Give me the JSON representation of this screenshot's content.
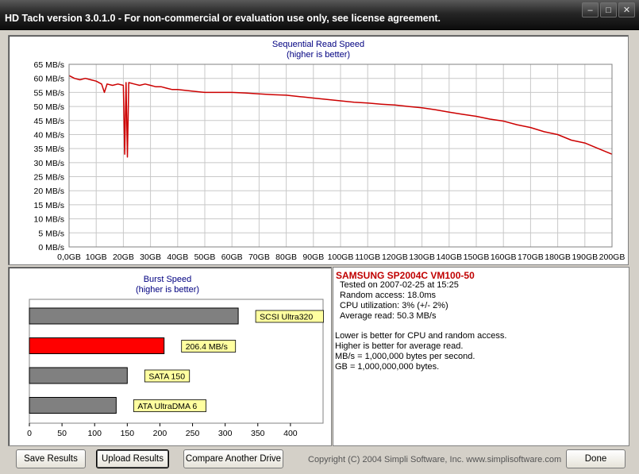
{
  "window": {
    "title": "HD Tach version 3.0.1.0  - For non-commercial or evaluation use only, see license agreement."
  },
  "seq_chart": {
    "title": "Sequential Read Speed",
    "subtitle": "(higher is better)"
  },
  "burst_chart": {
    "title": "Burst Speed",
    "subtitle": "(higher is better)"
  },
  "info": {
    "drive": "SAMSUNG SP2004C VM100-50",
    "tested": "Tested on 2007-02-25 at 15:25",
    "random_access": "Random access: 18.0ms",
    "cpu": "CPU utilization: 3% (+/- 2%)",
    "avg_read": "Average read: 50.3 MB/s",
    "note1": "Lower is better for CPU and random access.",
    "note2": "Higher is better for average read.",
    "note3": "MB/s = 1,000,000 bytes per second.",
    "note4": "GB = 1,000,000,000 bytes."
  },
  "buttons": {
    "save": "Save Results",
    "upload": "Upload Results",
    "compare": "Compare Another Drive",
    "done": "Done"
  },
  "copyright": "Copyright (C) 2004 Simpli Software, Inc. www.simplisoftware.com",
  "colors": {
    "accent_red": "#cc0000",
    "bar_gray": "#808080",
    "bar_red": "#ff0000",
    "label_yellow": "#ffffa0",
    "title_blue": "#000080"
  },
  "chart_data": [
    {
      "type": "line",
      "title": "Sequential Read Speed",
      "subtitle": "(higher is better)",
      "ylim": [
        0,
        65
      ],
      "xlim": [
        0,
        200
      ],
      "yticks": [
        "65 MB/s",
        "60 MB/s",
        "55 MB/s",
        "50 MB/s",
        "45 MB/s",
        "40 MB/s",
        "35 MB/s",
        "30 MB/s",
        "25 MB/s",
        "20 MB/s",
        "15 MB/s",
        "10 MB/s",
        "5 MB/s",
        "0 MB/s"
      ],
      "xticks": [
        "0,0GB",
        "10GB",
        "20GB",
        "30GB",
        "40GB",
        "50GB",
        "60GB",
        "70GB",
        "80GB",
        "90GB",
        "100GB",
        "110GB",
        "120GB",
        "130GB",
        "140GB",
        "150GB",
        "160GB",
        "170GB",
        "180GB",
        "190GB",
        "200GB"
      ],
      "series": [
        {
          "x": [
            0,
            2,
            4,
            6,
            8,
            10,
            12,
            13,
            14,
            16,
            18,
            20,
            20.5,
            21,
            21.5,
            22,
            24,
            26,
            28,
            30,
            32,
            34,
            36,
            38,
            40,
            45,
            50,
            55,
            60,
            65,
            70,
            75,
            80,
            85,
            90,
            95,
            100,
            105,
            110,
            115,
            120,
            125,
            130,
            135,
            140,
            145,
            150,
            155,
            160,
            165,
            170,
            175,
            180,
            185,
            190,
            195,
            200
          ],
          "y": [
            61,
            60,
            59.5,
            60,
            59.5,
            59,
            58,
            55,
            58,
            57.5,
            58,
            57.5,
            33,
            58.5,
            32,
            58.5,
            58,
            57.5,
            58,
            57.5,
            57,
            57,
            56.5,
            56,
            56,
            55.5,
            55,
            55,
            55,
            54.8,
            54.5,
            54.2,
            54,
            53.5,
            53,
            52.5,
            52,
            51.5,
            51.2,
            50.8,
            50.5,
            50,
            49.5,
            48.8,
            48,
            47.2,
            46.5,
            45.5,
            44.8,
            43.5,
            42.5,
            41,
            40,
            38,
            37,
            35,
            33
          ]
        }
      ]
    },
    {
      "type": "bar",
      "title": "Burst Speed",
      "subtitle": "(higher is better)",
      "orientation": "horizontal",
      "categories": [
        "SCSI Ultra320",
        "206.4 MB/s",
        "SATA 150",
        "ATA UltraDMA 6"
      ],
      "values": [
        320,
        206.4,
        150,
        133
      ],
      "xlim": [
        0,
        450
      ],
      "xticks": [
        "0",
        "50",
        "100",
        "150",
        "200",
        "250",
        "300",
        "350",
        "400"
      ]
    }
  ]
}
